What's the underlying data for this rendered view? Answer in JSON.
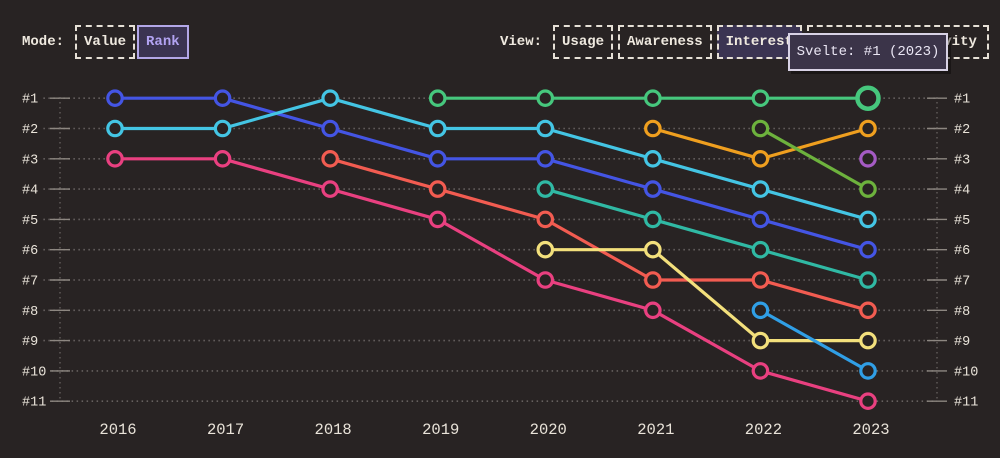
{
  "header": {
    "mode_label": "Mode:",
    "mode_options": [
      {
        "label": "Value",
        "selected": false
      },
      {
        "label": "Rank",
        "selected": true
      }
    ],
    "view_label": "View:",
    "view_options": [
      {
        "label": "Usage",
        "selected": false
      },
      {
        "label": "Awareness",
        "selected": false
      },
      {
        "label": "Interest",
        "selected": true
      },
      {
        "label": "Positivity",
        "selected": false
      }
    ]
  },
  "tooltip": {
    "text": "Svelte: #1 (2023)"
  },
  "chart_data": {
    "type": "line",
    "variant": "bump-chart-rankings",
    "title": "",
    "x": [
      2016,
      2017,
      2018,
      2019,
      2020,
      2021,
      2022,
      2023
    ],
    "rank_labels": [
      "#1",
      "#2",
      "#3",
      "#4",
      "#5",
      "#6",
      "#7",
      "#8",
      "#9",
      "#10",
      "#11"
    ],
    "ylim": [
      1,
      11
    ],
    "grid": "dotted-horizontal",
    "legend_position": "none",
    "series": [
      {
        "name": "pink",
        "color": "#e94080",
        "ranks": [
          3,
          3,
          4,
          5,
          7,
          8,
          10,
          11
        ]
      },
      {
        "name": "blue",
        "color": "#4455e4",
        "ranks": [
          1,
          1,
          2,
          3,
          3,
          4,
          5,
          6
        ]
      },
      {
        "name": "cyan",
        "color": "#44c5e4",
        "ranks": [
          2,
          2,
          1,
          2,
          2,
          3,
          4,
          5
        ]
      },
      {
        "name": "salmon",
        "color": "#f25c51",
        "ranks": [
          null,
          null,
          3,
          4,
          5,
          7,
          7,
          8
        ]
      },
      {
        "name": "teal",
        "color": "#30b9a4",
        "ranks": [
          null,
          null,
          null,
          null,
          4,
          5,
          6,
          7
        ]
      },
      {
        "name": "yellow",
        "color": "#f3e07c",
        "ranks": [
          null,
          null,
          null,
          null,
          6,
          6,
          9,
          9
        ]
      },
      {
        "name": "amber",
        "color": "#ef9f1f",
        "ranks": [
          null,
          null,
          null,
          null,
          null,
          2,
          3,
          2
        ]
      },
      {
        "name": "chartreuse",
        "color": "#6db23d",
        "ranks": [
          null,
          null,
          null,
          null,
          null,
          null,
          2,
          4
        ]
      },
      {
        "name": "sky",
        "color": "#309fe6",
        "ranks": [
          null,
          null,
          null,
          null,
          null,
          null,
          8,
          10
        ]
      },
      {
        "name": "purple",
        "color": "#a55bc4",
        "ranks": [
          null,
          null,
          null,
          null,
          null,
          null,
          null,
          3
        ]
      },
      {
        "name": "svelte",
        "color": "#46c77d",
        "ranks": [
          null,
          null,
          null,
          1,
          1,
          1,
          1,
          1
        ]
      }
    ],
    "highlight": {
      "series": "svelte",
      "year": 2023,
      "rank": 1
    }
  },
  "colors": {
    "background": "#282323",
    "grid_dots": "#6e6867",
    "axis_ticks": "#8d8781",
    "axis_text": "#e9e3d9",
    "button_border": "#e6e0d6",
    "selected_bg": "#3b3452",
    "selected_border": "#b3a7e8",
    "selected_text": "#b2a3f2",
    "tooltip_bg": "#3b3449",
    "tooltip_border": "#d8d2e5",
    "tooltip_text": "#e9e5f3"
  }
}
